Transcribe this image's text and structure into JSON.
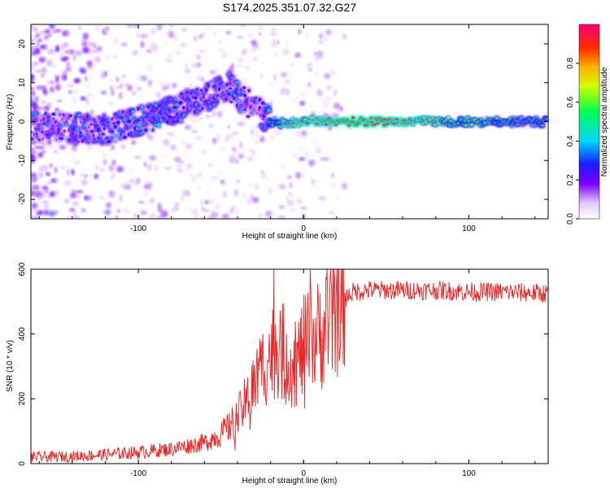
{
  "chart_data": [
    {
      "type": "heatmap",
      "title": "S174.2025.351.07.32.G27",
      "xlabel": "Height of straight line (km)",
      "ylabel": "Frequency (Hz)",
      "xlim": [
        -165,
        148
      ],
      "ylim": [
        -25,
        25
      ],
      "x_ticks": [
        -100,
        0,
        100
      ],
      "y_ticks": [
        -20,
        -10,
        0,
        10,
        20
      ],
      "colorbar": {
        "label": "Normalized spectral amplitude",
        "range": [
          0,
          1
        ],
        "ticks": [
          0.0,
          0.2,
          0.4,
          0.6,
          0.8
        ],
        "tick_labels": [
          "0.0",
          "0.2",
          "0.4",
          "0.6",
          "0.8"
        ]
      },
      "ridge": {
        "description_points_x": [
          -165,
          -120,
          -100,
          -80,
          -60,
          -45,
          -38,
          -28,
          -20,
          -12,
          0,
          20,
          60,
          100,
          148
        ],
        "frequency": [
          -1,
          -2,
          0,
          3,
          6,
          9,
          6,
          3,
          0,
          -0.5,
          0,
          0,
          0,
          0,
          0
        ],
        "amplitude": [
          0.25,
          0.3,
          0.35,
          0.35,
          0.3,
          0.3,
          0.3,
          0.25,
          0.45,
          0.7,
          0.75,
          0.9,
          0.85,
          0.6,
          0.45
        ]
      }
    },
    {
      "type": "line",
      "xlabel": "Height of straight line (km)",
      "ylabel": "SNR (10 * v/v)",
      "xlim": [
        -165,
        148
      ],
      "ylim": [
        0,
        600
      ],
      "x_ticks": [
        -100,
        0,
        100
      ],
      "y_ticks": [
        0,
        200,
        400,
        600
      ],
      "series": [
        {
          "name": "SNR",
          "color": "#ee2222",
          "x": [
            -165,
            -140,
            -120,
            -100,
            -80,
            -60,
            -50,
            -40,
            -32,
            -25,
            -20,
            -15,
            -10,
            -5,
            0,
            10,
            20,
            25,
            30,
            40,
            60,
            80,
            100,
            120,
            148
          ],
          "values": [
            20,
            22,
            28,
            35,
            45,
            65,
            90,
            140,
            220,
            300,
            340,
            360,
            330,
            300,
            360,
            400,
            470,
            510,
            530,
            535,
            535,
            535,
            530,
            530,
            525
          ]
        }
      ]
    }
  ],
  "colors": {
    "snr_line": "#ee2222",
    "axis": "#000000"
  }
}
